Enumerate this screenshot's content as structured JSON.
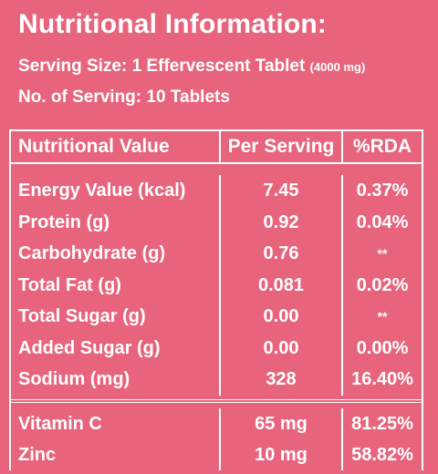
{
  "title": "Nutritional Information:",
  "serving_size_label": "Serving Size: 1 Effervescent Tablet",
  "serving_size_weight": "(4000 mg)",
  "servings_count": "No. of Serving: 10 Tablets",
  "table": {
    "headers": [
      "Nutritional Value",
      "Per Serving",
      "%RDA"
    ],
    "rows": [
      [
        "Energy Value (kcal)",
        "7.45",
        "0.37%"
      ],
      [
        "Protein (g)",
        "0.92",
        "0.04%"
      ],
      [
        "Carbohydrate (g)",
        "0.76",
        "**"
      ],
      [
        "Total Fat (g)",
        "0.081",
        "0.02%"
      ],
      [
        "Total Sugar (g)",
        "0.00",
        "**"
      ],
      [
        "Added Sugar (g)",
        "0.00",
        "0.00%"
      ],
      [
        "Sodium (mg)",
        "328",
        "16.40%"
      ]
    ],
    "micronutrients": [
      [
        "Vitamin C",
        "65 mg",
        "81.25%"
      ],
      [
        "Zinc",
        "10 mg",
        "58.82%"
      ]
    ]
  }
}
